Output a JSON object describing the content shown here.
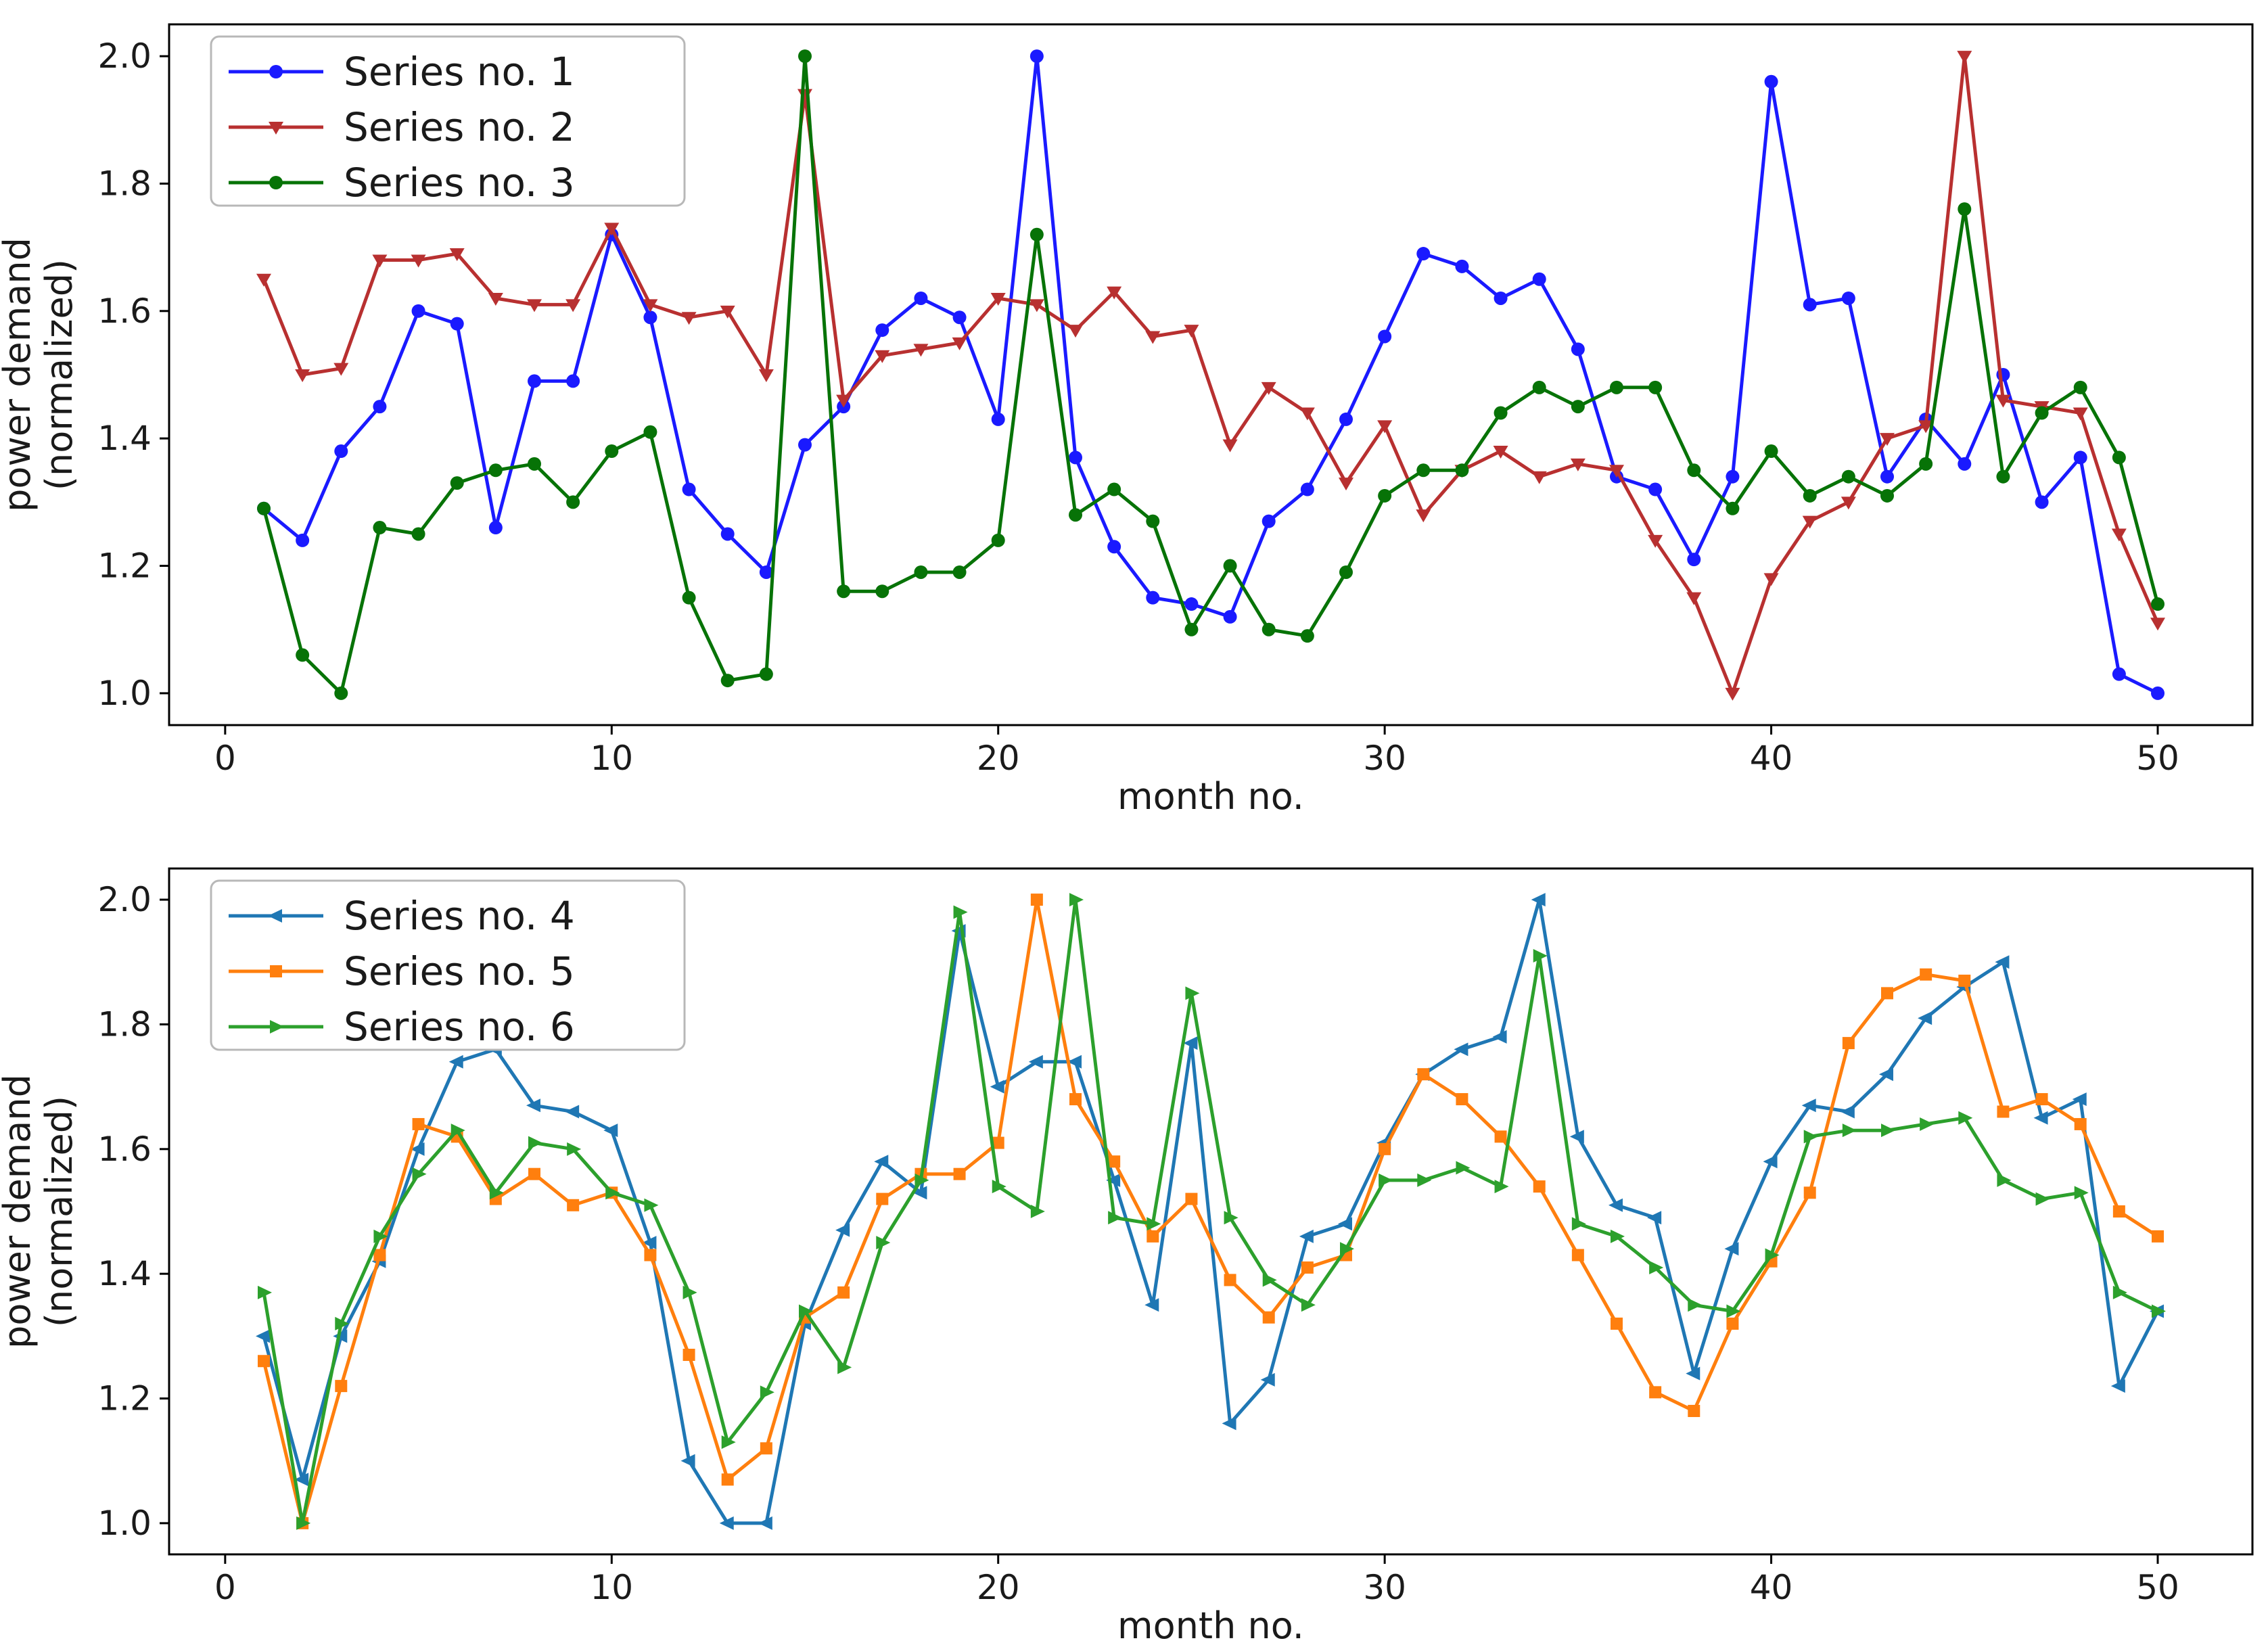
{
  "figure": {
    "background": "#ffffff",
    "text_color": "#1a1a1a",
    "spine_color": "#000000",
    "legend_border_color": "#b8b8b8",
    "legend_background": "#ffffff"
  },
  "chart_data": [
    {
      "type": "line",
      "title": "",
      "xlabel": "month no.",
      "ylabel_lines": [
        "power demand",
        "(normalized)"
      ],
      "x_tick_labels": [
        "0",
        "10",
        "20",
        "30",
        "40",
        "50"
      ],
      "x_ticks": [
        0,
        10,
        20,
        30,
        40,
        50
      ],
      "y_tick_labels": [
        "1.0",
        "1.2",
        "1.4",
        "1.6",
        "1.8",
        "2.0"
      ],
      "y_ticks": [
        1.0,
        1.2,
        1.4,
        1.6,
        1.8,
        2.0
      ],
      "xlim": [
        -1.45,
        52.45
      ],
      "ylim": [
        0.95,
        2.05
      ],
      "grid": false,
      "legend_position": "upper left",
      "x": [
        1,
        2,
        3,
        4,
        5,
        6,
        7,
        8,
        9,
        10,
        11,
        12,
        13,
        14,
        15,
        16,
        17,
        18,
        19,
        20,
        21,
        22,
        23,
        24,
        25,
        26,
        27,
        28,
        29,
        30,
        31,
        32,
        33,
        34,
        35,
        36,
        37,
        38,
        39,
        40,
        41,
        42,
        43,
        44,
        45,
        46,
        47,
        48,
        49,
        50
      ],
      "series": [
        {
          "name": "Series no. 1",
          "color": "#1a1aff",
          "marker": "circle",
          "values": [
            1.29,
            1.24,
            1.38,
            1.45,
            1.6,
            1.58,
            1.26,
            1.49,
            1.49,
            1.72,
            1.59,
            1.32,
            1.25,
            1.19,
            1.39,
            1.45,
            1.57,
            1.62,
            1.59,
            1.43,
            2.0,
            1.37,
            1.23,
            1.15,
            1.14,
            1.12,
            1.27,
            1.32,
            1.43,
            1.56,
            1.69,
            1.67,
            1.62,
            1.65,
            1.54,
            1.34,
            1.32,
            1.21,
            1.34,
            1.96,
            1.61,
            1.62,
            1.34,
            1.43,
            1.36,
            1.5,
            1.3,
            1.37,
            1.03,
            1.0
          ]
        },
        {
          "name": "Series no. 2",
          "color": "#b83030",
          "marker": "triangle-down",
          "values": [
            1.65,
            1.5,
            1.51,
            1.68,
            1.68,
            1.69,
            1.62,
            1.61,
            1.61,
            1.73,
            1.61,
            1.59,
            1.6,
            1.5,
            1.94,
            1.46,
            1.53,
            1.54,
            1.55,
            1.62,
            1.61,
            1.57,
            1.63,
            1.56,
            1.57,
            1.39,
            1.48,
            1.44,
            1.33,
            1.42,
            1.28,
            1.35,
            1.38,
            1.34,
            1.36,
            1.35,
            1.24,
            1.15,
            1.0,
            1.18,
            1.27,
            1.3,
            1.4,
            1.42,
            2.0,
            1.46,
            1.45,
            1.44,
            1.25,
            1.11
          ]
        },
        {
          "name": "Series no. 3",
          "color": "#077307",
          "marker": "circle",
          "values": [
            1.29,
            1.06,
            1.0,
            1.26,
            1.25,
            1.33,
            1.35,
            1.36,
            1.3,
            1.38,
            1.41,
            1.15,
            1.02,
            1.03,
            2.0,
            1.16,
            1.16,
            1.19,
            1.19,
            1.24,
            1.72,
            1.28,
            1.32,
            1.27,
            1.1,
            1.2,
            1.1,
            1.09,
            1.19,
            1.31,
            1.35,
            1.35,
            1.44,
            1.48,
            1.45,
            1.48,
            1.48,
            1.35,
            1.29,
            1.38,
            1.31,
            1.34,
            1.31,
            1.36,
            1.76,
            1.34,
            1.44,
            1.48,
            1.37,
            1.14
          ]
        }
      ]
    },
    {
      "type": "line",
      "title": "",
      "xlabel": "month no.",
      "ylabel_lines": [
        "power demand",
        "(normalized)"
      ],
      "x_tick_labels": [
        "0",
        "10",
        "20",
        "30",
        "40",
        "50"
      ],
      "x_ticks": [
        0,
        10,
        20,
        30,
        40,
        50
      ],
      "y_tick_labels": [
        "1.0",
        "1.2",
        "1.4",
        "1.6",
        "1.8",
        "2.0"
      ],
      "y_ticks": [
        1.0,
        1.2,
        1.4,
        1.6,
        1.8,
        2.0
      ],
      "xlim": [
        -1.45,
        52.45
      ],
      "ylim": [
        0.95,
        2.05
      ],
      "grid": false,
      "legend_position": "upper left",
      "x": [
        1,
        2,
        3,
        4,
        5,
        6,
        7,
        8,
        9,
        10,
        11,
        12,
        13,
        14,
        15,
        16,
        17,
        18,
        19,
        20,
        21,
        22,
        23,
        24,
        25,
        26,
        27,
        28,
        29,
        30,
        31,
        32,
        33,
        34,
        35,
        36,
        37,
        38,
        39,
        40,
        41,
        42,
        43,
        44,
        45,
        46,
        47,
        48,
        49,
        50
      ],
      "series": [
        {
          "name": "Series no. 4",
          "color": "#1f77b4",
          "marker": "triangle-left",
          "values": [
            1.3,
            1.07,
            1.3,
            1.42,
            1.6,
            1.74,
            1.76,
            1.67,
            1.66,
            1.63,
            1.45,
            1.1,
            1.0,
            1.0,
            1.32,
            1.47,
            1.58,
            1.53,
            1.95,
            1.7,
            1.74,
            1.74,
            1.55,
            1.35,
            1.77,
            1.16,
            1.23,
            1.46,
            1.48,
            1.61,
            1.72,
            1.76,
            1.78,
            2.0,
            1.62,
            1.51,
            1.49,
            1.24,
            1.44,
            1.58,
            1.67,
            1.66,
            1.72,
            1.81,
            1.86,
            1.9,
            1.65,
            1.68,
            1.22,
            1.34
          ]
        },
        {
          "name": "Series no. 5",
          "color": "#ff7f0e",
          "marker": "square",
          "values": [
            1.26,
            1.0,
            1.22,
            1.43,
            1.64,
            1.62,
            1.52,
            1.56,
            1.51,
            1.53,
            1.43,
            1.27,
            1.07,
            1.12,
            1.33,
            1.37,
            1.52,
            1.56,
            1.56,
            1.61,
            2.0,
            1.68,
            1.58,
            1.46,
            1.52,
            1.39,
            1.33,
            1.41,
            1.43,
            1.6,
            1.72,
            1.68,
            1.62,
            1.54,
            1.43,
            1.32,
            1.21,
            1.18,
            1.32,
            1.42,
            1.53,
            1.77,
            1.85,
            1.88,
            1.87,
            1.66,
            1.68,
            1.64,
            1.5,
            1.46
          ]
        },
        {
          "name": "Series no. 6",
          "color": "#2ca02c",
          "marker": "triangle-right",
          "values": [
            1.37,
            1.0,
            1.32,
            1.46,
            1.56,
            1.63,
            1.53,
            1.61,
            1.6,
            1.53,
            1.51,
            1.37,
            1.13,
            1.21,
            1.34,
            1.25,
            1.45,
            1.55,
            1.98,
            1.54,
            1.5,
            2.0,
            1.49,
            1.48,
            1.85,
            1.49,
            1.39,
            1.35,
            1.44,
            1.55,
            1.55,
            1.57,
            1.54,
            1.91,
            1.48,
            1.46,
            1.41,
            1.35,
            1.34,
            1.43,
            1.62,
            1.63,
            1.63,
            1.64,
            1.65,
            1.55,
            1.52,
            1.53,
            1.37,
            1.34
          ]
        }
      ]
    }
  ]
}
